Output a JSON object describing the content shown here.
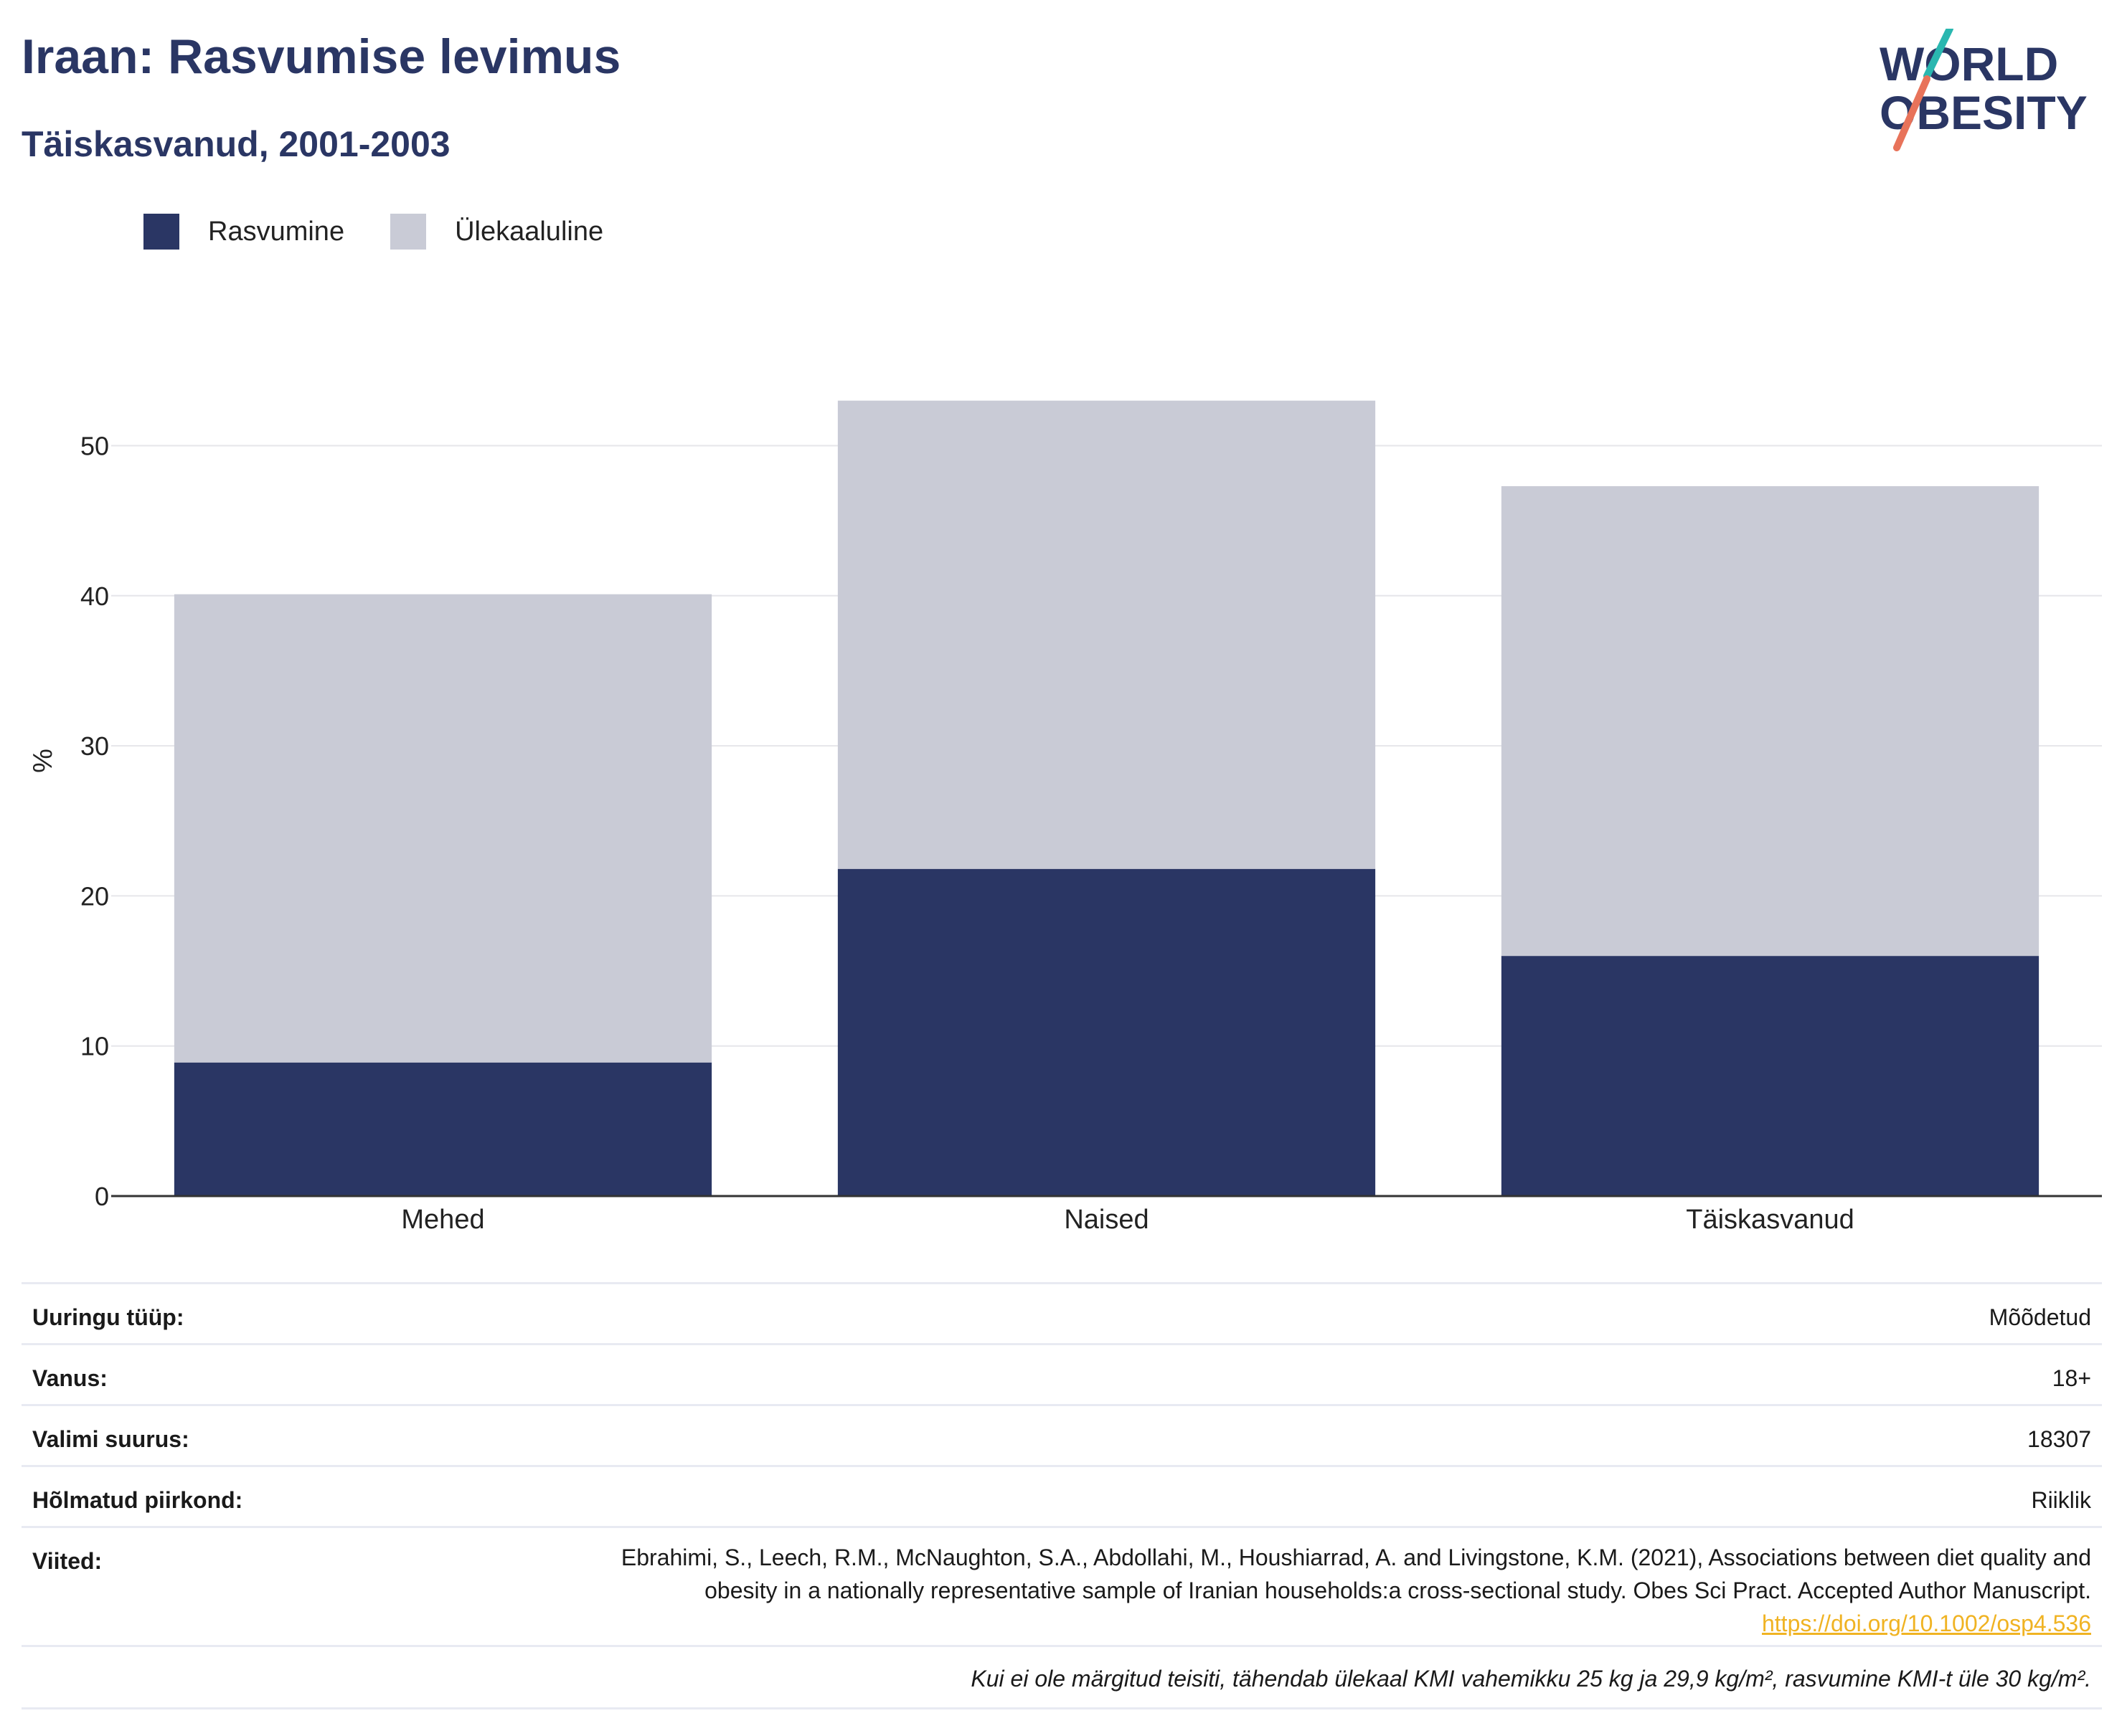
{
  "header": {
    "title": "Iraan: Rasvumise levimus",
    "subtitle": "Täiskasvanud, 2001-2003"
  },
  "logo": {
    "line1": "WORLD",
    "line2": "OBESITY",
    "colors": {
      "text": "#2a3664",
      "slash_top": "#2ab7b0",
      "slash_bottom": "#e8735a"
    }
  },
  "legend": {
    "items": [
      {
        "label": "Rasvumine",
        "color": "#2a3664"
      },
      {
        "label": "Ülekaaluline",
        "color": "#c9cbd6"
      }
    ]
  },
  "chart_data": {
    "type": "bar",
    "stacked": true,
    "categories": [
      "Mehed",
      "Naised",
      "Täiskasvanud"
    ],
    "series": [
      {
        "name": "Rasvumine",
        "values": [
          8.9,
          21.8,
          16.0
        ],
        "color": "#2a3664"
      },
      {
        "name": "Ülekaaluline",
        "values": [
          31.2,
          31.2,
          31.3
        ],
        "color": "#c9cbd6"
      }
    ],
    "ylabel": "%",
    "xlabel": "",
    "ylim": [
      0,
      56
    ],
    "yticks": [
      0,
      10,
      20,
      30,
      40,
      50
    ],
    "grid": true,
    "legend_position": "top-left"
  },
  "meta": {
    "survey_type_label": "Uuringu tüüp:",
    "survey_type_value": "Mõõdetud",
    "age_label": "Vanus:",
    "age_value": "18+",
    "sample_label": "Valimi suurus:",
    "sample_value": "18307",
    "region_label": "Hõlmatud piirkond:",
    "region_value": "Riiklik",
    "refs_label": "Viited:",
    "refs_text": "Ebrahimi, S., Leech, R.M., McNaughton, S.A., Abdollahi, M., Houshiarrad, A. and Livingstone, K.M. (2021), Associations between diet quality and obesity in a nationally representative sample of Iranian households:a cross-sectional study. Obes Sci Pract. Accepted Author Manuscript.",
    "refs_link": "https://doi.org/10.1002/osp4.536",
    "footnote": "Kui ei ole märgitud teisiti, tähendab ülekaal KMI vahemikku 25 kg ja 29,9 kg/m², rasvumine KMI-t üle 30 kg/m²."
  }
}
